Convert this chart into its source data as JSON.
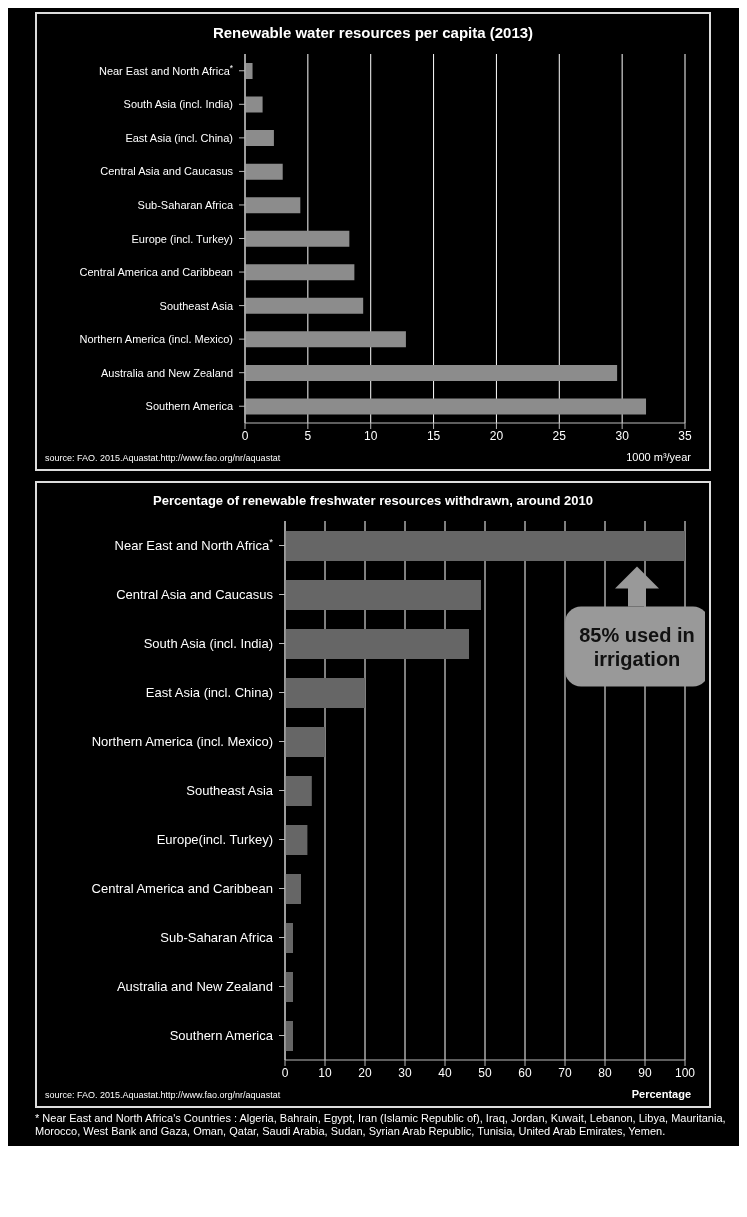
{
  "chart_data": [
    {
      "type": "bar",
      "orientation": "horizontal",
      "title": "Renewable water resources per capita (2013)",
      "xlabel": "1000 m³/year",
      "categories": [
        "Near East and North Africa$^{*}$",
        "South Asia (incl. India)",
        "East Asia (incl. China)",
        "Central Asia and Caucasus",
        "Sub-Saharan Africa",
        "Europe (incl. Turkey)",
        "Central America and Caribbean",
        "Southeast Asia",
        "Northern America (incl. Mexico)",
        "Australia and New Zealand",
        "Southern America"
      ],
      "values": [
        0.6,
        1.4,
        2.3,
        3.0,
        4.4,
        8.3,
        8.7,
        9.4,
        12.8,
        29.6,
        31.9
      ],
      "color": "#8c8c8c",
      "xlim": [
        0,
        35
      ],
      "xticks": [
        0,
        5,
        10,
        15,
        20,
        25,
        30,
        35
      ],
      "grid": "x",
      "annotations": [
        "source: FAO. 2015.Aquastat.http://www.fao.org/nr/aquastat"
      ]
    },
    {
      "type": "bar",
      "orientation": "horizontal",
      "title": "Percentage of renewable freshwater resources withdrawn, around 2010",
      "xlabel": "Percentage",
      "categories": [
        "Near East and North Africa$^{*}$",
        "Central Asia and Caucasus",
        "South Asia (incl. India)",
        "East Asia (incl. China)",
        "Northern America (incl. Mexico)",
        "Southeast Asia",
        "Europe(incl. Turkey)",
        "Central America and Caribbean",
        "Sub-Saharan Africa",
        "Australia and New Zealand",
        "Southern America"
      ],
      "values": [
        100,
        49,
        46,
        20,
        10,
        6.7,
        5.6,
        4,
        2,
        2,
        2
      ],
      "color": "#666666",
      "xlim": [
        0,
        100
      ],
      "xticks": [
        0,
        10,
        20,
        30,
        40,
        50,
        60,
        70,
        80,
        90,
        100
      ],
      "grid": "x",
      "annotations": [
        {
          "text": "85% used in irrigation",
          "x": 88,
          "y": "Near East and North Africa$^{*}$"
        },
        "source: FAO. 2015.Aquastat.http://www.fao.org/nr/aquastat",
        "* Near East and North Africa's Countries : Algeria, Bahrain, Egypt, Iran (Islamic Republic of), Iraq, Jordan, Kuwait, Lebanon, Libya, Mauritania, Morocco, West Bank and Gaza, Oman, Qatar, Saudi Arabia, Sudan, Syrian Arab Republic, Tunisia, United Arab Emirates, Yemen."
      ]
    }
  ]
}
